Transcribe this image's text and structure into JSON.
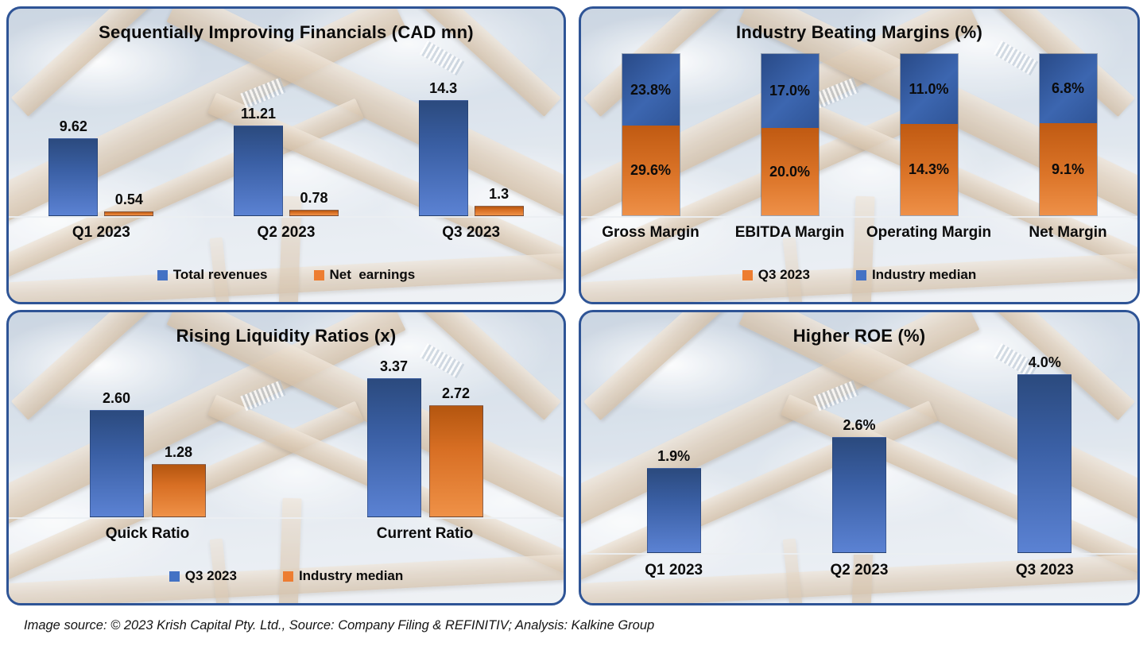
{
  "colors": {
    "series_blue": "#4472C4",
    "series_orange": "#ED7D31",
    "panel_border": "#2E5496"
  },
  "footer": {
    "text": "Image source: © 2023 Krish Capital Pty. Ltd., Source: Company Filing & REFINITIV; Analysis: Kalkine Group"
  },
  "chart_data": [
    {
      "id": "financials",
      "type": "bar",
      "title": "Sequentially Improving Financials (CAD mn)",
      "categories": [
        "Q1 2023",
        "Q2 2023",
        "Q3 2023"
      ],
      "series": [
        {
          "name": "Total revenues",
          "color": "blue",
          "values": [
            9.62,
            11.21,
            14.3
          ],
          "labels": [
            "9.62",
            "11.21",
            "14.3"
          ]
        },
        {
          "name": "Net  earnings",
          "color": "orange",
          "values": [
            0.54,
            0.78,
            1.3
          ],
          "labels": [
            "0.54",
            "0.78",
            "1.3"
          ]
        }
      ],
      "ylim": [
        0,
        14.3
      ],
      "grid": false,
      "legend_position": "bottom",
      "legend": [
        {
          "label": "Total revenues",
          "color": "blue"
        },
        {
          "label": "Net  earnings",
          "color": "orange"
        }
      ]
    },
    {
      "id": "margins",
      "type": "bar",
      "subtype": "stacked-100",
      "title": "Industry Beating Margins (%)",
      "categories": [
        "Gross Margin",
        "EBITDA Margin",
        "Operating Margin",
        "Net Margin"
      ],
      "series": [
        {
          "name": "Q3 2023",
          "color": "orange",
          "values": [
            29.6,
            20.0,
            14.3,
            9.1
          ],
          "labels": [
            "29.6%",
            "20.0%",
            "14.3%",
            "9.1%"
          ]
        },
        {
          "name": "Industry median",
          "color": "blue",
          "values": [
            23.8,
            17.0,
            11.0,
            6.8
          ],
          "labels": [
            "23.8%",
            "17.0%",
            "11.0%",
            "6.8%"
          ]
        }
      ],
      "grid": false,
      "legend_position": "bottom",
      "legend": [
        {
          "label": "Q3 2023",
          "color": "orange"
        },
        {
          "label": "Industry median",
          "color": "blue"
        }
      ]
    },
    {
      "id": "liquidity",
      "type": "bar",
      "title": "Rising Liquidity Ratios (x)",
      "categories": [
        "Quick Ratio",
        "Current Ratio"
      ],
      "series": [
        {
          "name": "Q3 2023",
          "color": "blue",
          "values": [
            2.6,
            3.37
          ],
          "labels": [
            "2.60",
            "3.37"
          ]
        },
        {
          "name": "Industry median",
          "color": "orange",
          "values": [
            1.28,
            2.72
          ],
          "labels": [
            "1.28",
            "2.72"
          ]
        }
      ],
      "ylim": [
        0,
        3.37
      ],
      "grid": false,
      "legend_position": "bottom",
      "legend": [
        {
          "label": "Q3 2023",
          "color": "blue"
        },
        {
          "label": "Industry median",
          "color": "orange"
        }
      ]
    },
    {
      "id": "roe",
      "type": "bar",
      "title": "Higher ROE (%)",
      "categories": [
        "Q1 2023",
        "Q2 2023",
        "Q3 2023"
      ],
      "series": [
        {
          "name": "ROE",
          "color": "blue",
          "values": [
            1.9,
            2.6,
            4.0
          ],
          "labels": [
            "1.9%",
            "2.6%",
            "4.0%"
          ]
        }
      ],
      "ylim": [
        0,
        4.0
      ],
      "grid": false,
      "legend": []
    }
  ]
}
